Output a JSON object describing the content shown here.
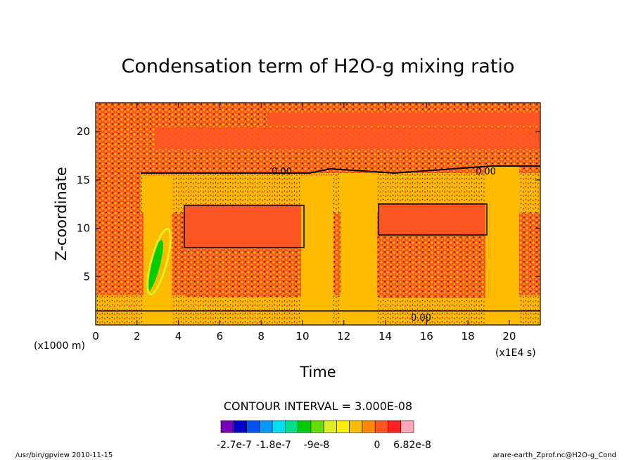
{
  "chart_data": {
    "type": "heatmap",
    "title": "Condensation term of H2O-g mixing ratio",
    "xlabel": "Time",
    "ylabel": "Z-coordinate",
    "x_unit": "(x1E4 s)",
    "y_unit": "(x1000 m)",
    "xlim": [
      0,
      21.5
    ],
    "ylim": [
      0,
      23
    ],
    "x_ticks": [
      "0",
      "2",
      "4",
      "6",
      "8",
      "10",
      "12",
      "14",
      "16",
      "18",
      "20"
    ],
    "y_ticks": [
      "5",
      "10",
      "15",
      "20"
    ],
    "contour_interval_text": "CONTOUR INTERVAL = 3.000E-08",
    "contour_labels": [
      "0.00",
      "0.00",
      "0.00"
    ],
    "colorbar": {
      "labels": [
        "-2.7e-7",
        "-1.8e-7",
        "-9e-8",
        "0",
        "6.82e-8"
      ],
      "colors": [
        "#7700bb",
        "#0000cc",
        "#0055ee",
        "#0099ff",
        "#00ddee",
        "#00dd88",
        "#00cc00",
        "#66dd00",
        "#ddee22",
        "#ffee00",
        "#ffbb00",
        "#ff8800",
        "#ff5522",
        "#ff2222",
        "#ffaabb"
      ]
    },
    "description_colors": {
      "background": "#ff5522",
      "dominant": "#ffbb00",
      "negative": "#00cc00"
    }
  },
  "footer": {
    "left": "/usr/bin/gpview  2010-11-15",
    "right": "arare-earth_Zprof.nc@H2O-g_Cond"
  }
}
